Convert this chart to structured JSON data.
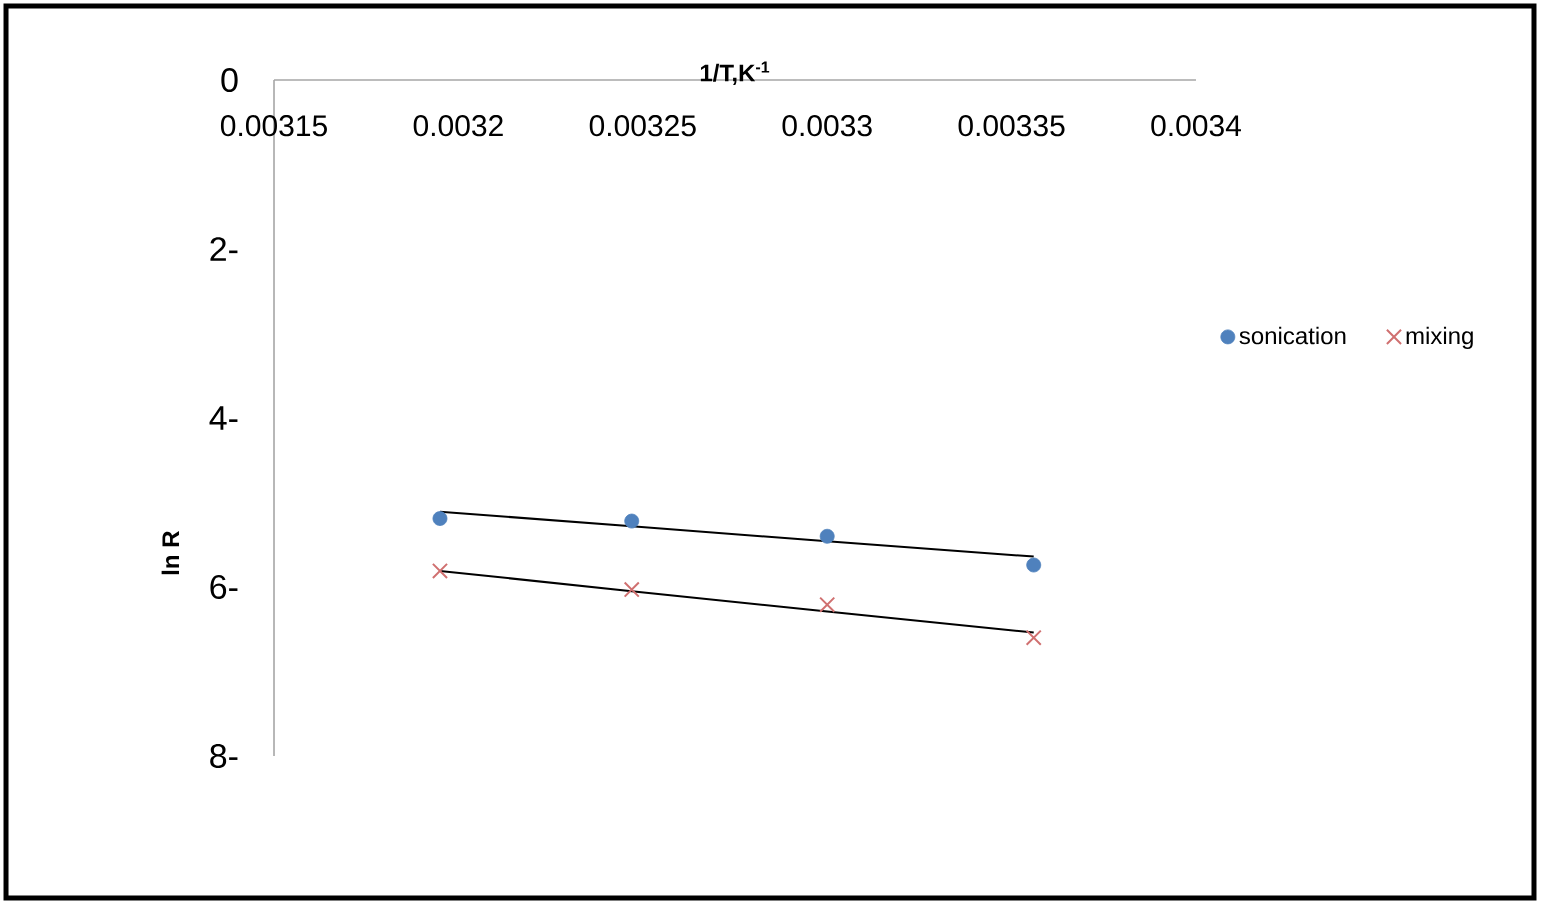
{
  "chart_data": {
    "type": "scatter",
    "xlabel": "1/T,K$^{-1}$",
    "ylabel": "ln R",
    "xlim": [
      0.00315,
      0.0034
    ],
    "xticks": [
      0.00315,
      0.0032,
      0.00325,
      0.0033,
      0.00335,
      0.0034
    ],
    "ylim": [
      -8,
      0
    ],
    "yticks": [
      0,
      {
        "value": -2,
        "label": "2-"
      },
      {
        "value": -4,
        "label": "4-"
      },
      {
        "value": -6,
        "label": "6-"
      },
      {
        "value": -8,
        "label": "8-"
      }
    ],
    "x": [
      0.003195,
      0.003247,
      0.0033,
      0.003356
    ],
    "series": [
      {
        "name": "sonication",
        "color": "#4f81bd",
        "marker": "circle",
        "values": [
          -5.19,
          -5.22,
          -5.4,
          -5.74
        ]
      },
      {
        "name": "mixing",
        "color": "#d07070",
        "marker": "cross",
        "values": [
          -5.81,
          -6.03,
          -6.21,
          -6.6
        ]
      },
      {
        "type": "line",
        "color": "#000000",
        "marker": "none",
        "values": [
          -5.11,
          -5.28,
          -5.46,
          -5.64
        ]
      },
      {
        "type": "line",
        "color": "#000000",
        "marker": "none",
        "values": [
          -5.81,
          -6.05,
          -6.29,
          -6.54
        ]
      }
    ],
    "legend": "right",
    "grid": false
  }
}
